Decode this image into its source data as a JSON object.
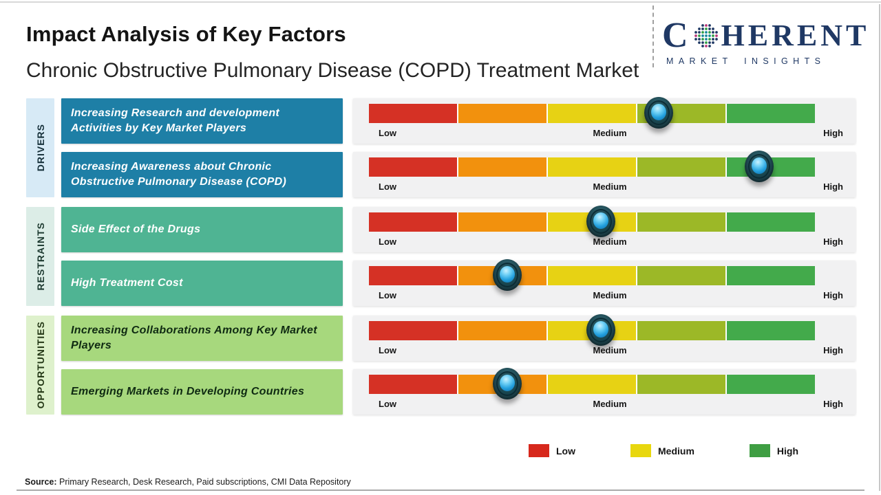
{
  "page": {
    "title": "Impact Analysis of Key Factors",
    "subtitle": "Chronic Obstructive Pulmonary Disease (COPD) Treatment Market",
    "source_label": "Source:",
    "source_text": " Primary Research, Desk Research, Paid subscriptions, CMI Data Repository"
  },
  "logo": {
    "name": "Coherent Market Insights",
    "word_start": "C",
    "word_end": "HERENT",
    "tagline": "MARKET INSIGHTS",
    "color": "#1f3864",
    "globe_colors": {
      "outer": "#1f3864",
      "accent": "#b73779",
      "green": "#2f9e45",
      "teal": "#17899b"
    }
  },
  "chart_data": {
    "type": "rating-scale",
    "scale": [
      "Low",
      "Medium",
      "High"
    ],
    "scale_range_pct": [
      0,
      100
    ],
    "segment_colors": [
      "#d53125",
      "#f2910d",
      "#e7d214",
      "#9cb827",
      "#43aa4b"
    ],
    "marker_colors": {
      "ring": "#1c454e",
      "core": "#2fa9e4"
    },
    "panel_color": "#f1f1f2",
    "groups": [
      {
        "name": "DRIVERS",
        "tab_color": "#d7eaf6",
        "tab_text_color": "#17313b",
        "box_color": "#1e7fa6",
        "text_color": "#ffffff",
        "rows": [
          {
            "label": "Increasing Research and development Activities by Key Market Players",
            "impact_pct": 65,
            "impact_level": "Medium-High"
          },
          {
            "label": "Increasing Awareness about Chronic Obstructive Pulmonary Disease (COPD)",
            "impact_pct": 87.5,
            "impact_level": "High"
          }
        ]
      },
      {
        "name": "RESTRAINTS",
        "tab_color": "#dcede7",
        "tab_text_color": "#1d3a30",
        "box_color": "#4fb493",
        "text_color": "#ffffff",
        "rows": [
          {
            "label": "Side Effect of the Drugs",
            "impact_pct": 52,
            "impact_level": "Medium"
          },
          {
            "label": "High Treatment Cost",
            "impact_pct": 31,
            "impact_level": "Low-Medium"
          }
        ]
      },
      {
        "name": "OPPORTUNITIES",
        "tab_color": "#def1cc",
        "tab_text_color": "#243816",
        "box_color": "#a7d87d",
        "text_color": "#0f2a12",
        "rows": [
          {
            "label": "Increasing Collaborations Among Key Market Players",
            "impact_pct": 52,
            "impact_level": "Medium"
          },
          {
            "label": "Emerging Markets in Developing Countries",
            "impact_pct": 31,
            "impact_level": "Low-Medium"
          }
        ]
      }
    ],
    "legend_position": "bottom-right"
  },
  "legend": [
    {
      "label": "Low",
      "color": "#d7281c"
    },
    {
      "label": "Medium",
      "color": "#e8d70e"
    },
    {
      "label": "High",
      "color": "#3f9e43"
    }
  ]
}
